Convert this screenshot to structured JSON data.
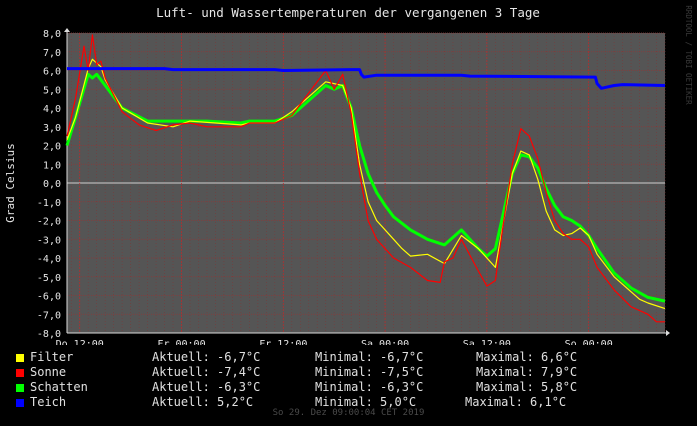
{
  "chart_data": {
    "type": "line",
    "title": "Luft- und Wassertemperaturen der vergangenen 3 Tage",
    "ylabel": "Grad Celsius",
    "side_label": "RRDTOOL / TOBI OETIKER",
    "xlabel": "",
    "x_ticks": [
      "Do 12:00",
      "Fr 00:00",
      "Fr 12:00",
      "Sa 00:00",
      "Sa 12:00",
      "So 00:00"
    ],
    "y_ticks": [
      "8,0",
      "7,0",
      "6,0",
      "5,0",
      "4,0",
      "3,0",
      "2,0",
      "1,0",
      "0,0",
      "-1,0",
      "-2,0",
      "-3,0",
      "-4,0",
      "-5,0",
      "-6,0",
      "-7,0",
      "-8,0"
    ],
    "ylim": [
      -8,
      8
    ],
    "x_range_hours": [
      -70.5,
      0
    ],
    "x_unit": "hours relative to So 29. Dez 09:00 2019",
    "grid": true,
    "legend_position": "bottom",
    "background": "#555555",
    "series": [
      {
        "name": "Filter",
        "color": "#ffff00",
        "x": [
          -70.5,
          -69.5,
          -68,
          -67.5,
          -66.5,
          -66,
          -64,
          -61,
          -58,
          -56,
          -50,
          -49,
          -46,
          -44,
          -40,
          -38,
          -37,
          -36,
          -35,
          -34,
          -32,
          -31,
          -30,
          -28,
          -26,
          -24,
          -22,
          -20,
          -19,
          -18,
          -17,
          -16,
          -15,
          -14,
          -13,
          -12,
          -11,
          -10,
          -9,
          -8,
          -6,
          -4,
          -3,
          -2,
          0
        ],
        "y": [
          2.3,
          3.5,
          6.1,
          6.6,
          6.2,
          5.5,
          4,
          3.2,
          3,
          3.3,
          3.1,
          3.2,
          3.2,
          3.8,
          5.4,
          5.2,
          4,
          1,
          -1,
          -2,
          -3,
          -3.5,
          -3.9,
          -3.8,
          -4.3,
          -2.8,
          -3.5,
          -4.5,
          -2,
          0.5,
          1.7,
          1.5,
          0.2,
          -1.5,
          -2.5,
          -2.8,
          -2.7,
          -2.4,
          -2.8,
          -3.8,
          -5,
          -5.8,
          -6.2,
          -6.4,
          -6.7
        ]
      },
      {
        "name": "Sonne",
        "color": "#ff0000",
        "x": [
          -70.5,
          -69.5,
          -68.5,
          -68,
          -67.5,
          -67,
          -66.5,
          -66,
          -64,
          -62,
          -60,
          -58,
          -56,
          -54,
          -50,
          -49,
          -46,
          -44,
          -40,
          -39,
          -38,
          -37,
          -36,
          -35,
          -34,
          -33,
          -32,
          -30,
          -28,
          -26.5,
          -26,
          -25,
          -24,
          -22,
          -21,
          -20,
          -19,
          -18,
          -17,
          -16,
          -15,
          -14,
          -13,
          -12,
          -11,
          -10,
          -9,
          -8,
          -6,
          -4,
          -2,
          -1,
          0
        ],
        "y": [
          2.5,
          4.5,
          7.3,
          6,
          7.9,
          6.3,
          6.5,
          5.6,
          3.8,
          3.1,
          2.8,
          3.1,
          3.2,
          3.0,
          3.0,
          3.2,
          3.2,
          3.6,
          6.0,
          5.0,
          5.8,
          3.7,
          0.5,
          -2,
          -3,
          -3.5,
          -4,
          -4.5,
          -5.2,
          -5.3,
          -4.2,
          -4,
          -3,
          -4.7,
          -5.5,
          -5.2,
          -2,
          1,
          2.9,
          2.5,
          1.3,
          -0.5,
          -2,
          -2.7,
          -3,
          -3,
          -3.4,
          -4.5,
          -5.7,
          -6.6,
          -7,
          -7.4,
          -7.4
        ]
      },
      {
        "name": "Schatten",
        "color": "#00ff00",
        "x": [
          -70.5,
          -69.5,
          -68,
          -67.5,
          -67,
          -66,
          -64,
          -61,
          -58,
          -54,
          -50,
          -49,
          -46,
          -44,
          -40,
          -39,
          -38,
          -37,
          -36,
          -35,
          -34,
          -33,
          -32,
          -30,
          -28,
          -26,
          -24,
          -22,
          -21,
          -20,
          -19,
          -18,
          -17,
          -16,
          -15,
          -14,
          -13,
          -12,
          -11,
          -10,
          -9,
          -8,
          -6,
          -4,
          -2,
          0
        ],
        "y": [
          2.0,
          3.5,
          5.8,
          5.6,
          5.8,
          5.2,
          4,
          3.3,
          3.3,
          3.3,
          3.2,
          3.3,
          3.3,
          3.6,
          5.2,
          5.0,
          5.2,
          4,
          2,
          0.5,
          -0.5,
          -1.2,
          -1.8,
          -2.5,
          -3.0,
          -3.3,
          -2.5,
          -3.5,
          -3.9,
          -3.5,
          -1.5,
          0.5,
          1.5,
          1.4,
          0.8,
          -0.3,
          -1.2,
          -1.8,
          -2.0,
          -2.3,
          -2.8,
          -3.5,
          -4.8,
          -5.6,
          -6.1,
          -6.3
        ]
      },
      {
        "name": "Teich",
        "color": "#0000ff",
        "x": [
          -70.5,
          -59,
          -58,
          -46,
          -45,
          -37,
          -36,
          -35.8,
          -35.5,
          -34,
          -24,
          -23,
          -8.2,
          -8,
          -7.5,
          -6,
          -5,
          0
        ],
        "y": [
          6.1,
          6.1,
          6.05,
          6.05,
          6.0,
          6.05,
          6.05,
          5.8,
          5.65,
          5.75,
          5.75,
          5.7,
          5.65,
          5.3,
          5.05,
          5.2,
          5.25,
          5.2
        ]
      }
    ]
  },
  "legend": [
    {
      "name": "Filter",
      "color": "#ffff00",
      "aktuell": "Aktuell: -6,7°C",
      "minimal": "Minimal: -6,7°C",
      "maximal": "Maximal: 6,6°C"
    },
    {
      "name": "Sonne",
      "color": "#ff0000",
      "aktuell": "Aktuell: -7,4°C",
      "minimal": "Minimal: -7,5°C",
      "maximal": "Maximal: 7,9°C"
    },
    {
      "name": "Schatten",
      "color": "#00ff00",
      "aktuell": "Aktuell: -6,3°C",
      "minimal": "Minimal: -6,3°C",
      "maximal": "Maximal: 5,8°C"
    },
    {
      "name": "Teich",
      "color": "#0000ff",
      "aktuell": "Aktuell: 5,2°C",
      "minimal": "Minimal: 5,0°C",
      "maximal": "Maximal: 6,1°C"
    }
  ],
  "footer": "So 29. Dez 09:00:04 CET 2019"
}
